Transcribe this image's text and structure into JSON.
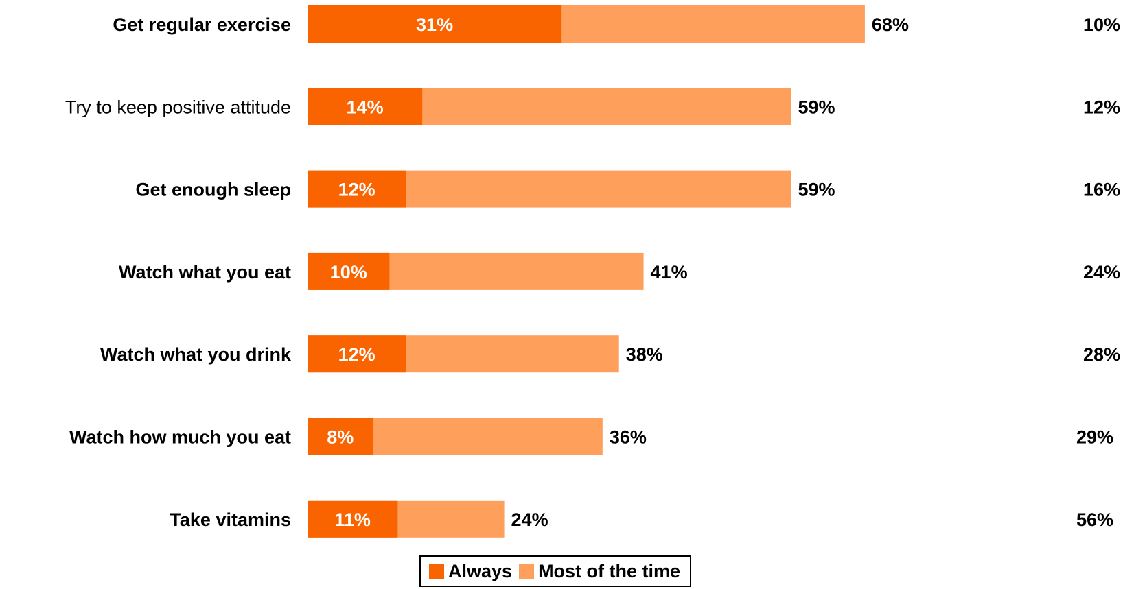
{
  "chart_data": {
    "type": "bar",
    "orientation": "horizontal",
    "stacked": true,
    "categories": [
      "Get regular exercise",
      "Try to keep positive attitude",
      "Get enough sleep",
      "Watch what you eat",
      "Watch what you drink",
      "Watch how much you eat",
      "Take vitamins"
    ],
    "category_bold": [
      true,
      false,
      true,
      true,
      true,
      true,
      true
    ],
    "series": [
      {
        "name": "Always",
        "values": [
          31,
          14,
          12,
          10,
          12,
          8,
          11
        ],
        "labels": [
          "31%",
          "14%",
          "12%",
          "10%",
          "12%",
          "8%",
          "11%"
        ]
      },
      {
        "name": "Most of the time",
        "values": [
          37,
          45,
          47,
          31,
          26,
          28,
          13
        ]
      }
    ],
    "totals": [
      68,
      59,
      59,
      41,
      38,
      36,
      24
    ],
    "total_labels": [
      "68%",
      "59%",
      "59%",
      "41%",
      "38%",
      "36%",
      "24%"
    ],
    "right_column": [
      10,
      12,
      16,
      24,
      28,
      29,
      56
    ],
    "right_column_labels": [
      "10%",
      "12%",
      "16%",
      "24%",
      "28%",
      "29%",
      "56%"
    ],
    "colors": {
      "always": "#f96400",
      "most_of_the_time": "#ff9f5c"
    },
    "legend": [
      {
        "label": "Always",
        "color": "#f96400"
      },
      {
        "label": "Most of the time",
        "color": "#ff9f5c"
      }
    ],
    "legend_position": "bottom",
    "xlim": [
      0,
      100
    ],
    "grid": false
  }
}
